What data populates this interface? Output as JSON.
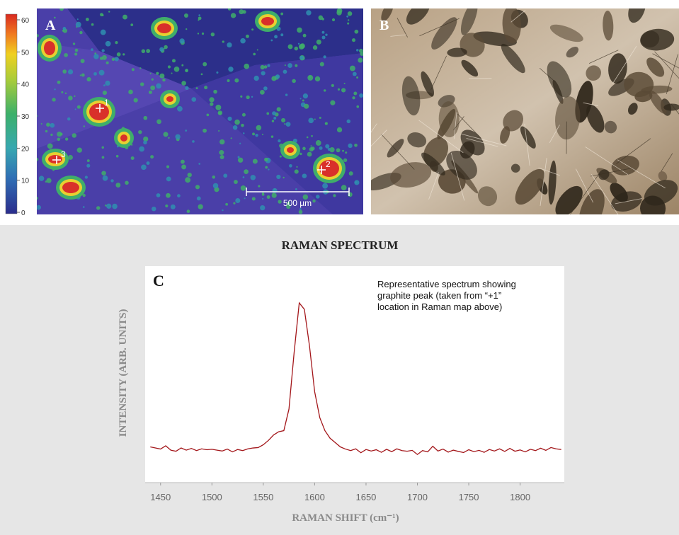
{
  "panels": {
    "a": {
      "label": "A",
      "colorbar_ticks": [
        0,
        10,
        20,
        30,
        40,
        50,
        60
      ],
      "points": [
        "1",
        "2",
        "3"
      ],
      "scale_bar": "500 µm"
    },
    "b": {
      "label": "B"
    }
  },
  "chart_data": {
    "type": "line",
    "title": "RAMAN SPECTRUM",
    "panel_label": "C",
    "annotation": [
      "Representative spectrum showing",
      "graphite peak (taken from “+1”",
      "location in Raman map above)"
    ],
    "x_label": "RAMAN SHIFT (cm⁻¹)",
    "y_label": "INTENSITY (ARB. UNITS)",
    "xlim": [
      1435,
      1843
    ],
    "ylim": [
      0,
      100
    ],
    "xticks": [
      1450,
      1500,
      1550,
      1600,
      1650,
      1700,
      1750,
      1800
    ],
    "x": [
      1440,
      1445,
      1450,
      1455,
      1460,
      1465,
      1470,
      1475,
      1480,
      1485,
      1490,
      1495,
      1500,
      1505,
      1510,
      1515,
      1520,
      1525,
      1530,
      1535,
      1540,
      1545,
      1550,
      1555,
      1560,
      1565,
      1570,
      1575,
      1580,
      1585,
      1590,
      1595,
      1600,
      1605,
      1610,
      1615,
      1620,
      1625,
      1630,
      1635,
      1640,
      1645,
      1650,
      1655,
      1660,
      1665,
      1670,
      1675,
      1680,
      1685,
      1690,
      1695,
      1700,
      1705,
      1710,
      1715,
      1720,
      1725,
      1730,
      1735,
      1740,
      1745,
      1750,
      1755,
      1760,
      1765,
      1770,
      1775,
      1780,
      1785,
      1790,
      1795,
      1800,
      1805,
      1810,
      1815,
      1820,
      1825,
      1830,
      1835,
      1840
    ],
    "series": [
      {
        "color": "#a3161a",
        "values": [
          16.5,
          16,
          15.5,
          17,
          15,
          14.5,
          16,
          15,
          15.8,
          14.8,
          15.6,
          15.2,
          15.4,
          15,
          14.6,
          15.5,
          14.2,
          15.3,
          14.8,
          15.6,
          16,
          16.2,
          17.5,
          19.5,
          22,
          23.5,
          24,
          34,
          60,
          83,
          80,
          63,
          42,
          30,
          24,
          20.5,
          18.5,
          16.5,
          15.5,
          14.8,
          15.6,
          13.8,
          15.3,
          14.6,
          15.2,
          14,
          15.4,
          14.3,
          15.6,
          14.8,
          14.5,
          14.9,
          13,
          14.8,
          14.2,
          16.8,
          14.6,
          15.5,
          14.1,
          15,
          14.4,
          13.9,
          15.2,
          14.3,
          14.9,
          14,
          15.3,
          14.6,
          15.6,
          14.4,
          15.8,
          14.5,
          15.1,
          14.2,
          15.4,
          14.8,
          15.9,
          14.9,
          16.2,
          15.6,
          15.3
        ]
      }
    ]
  }
}
